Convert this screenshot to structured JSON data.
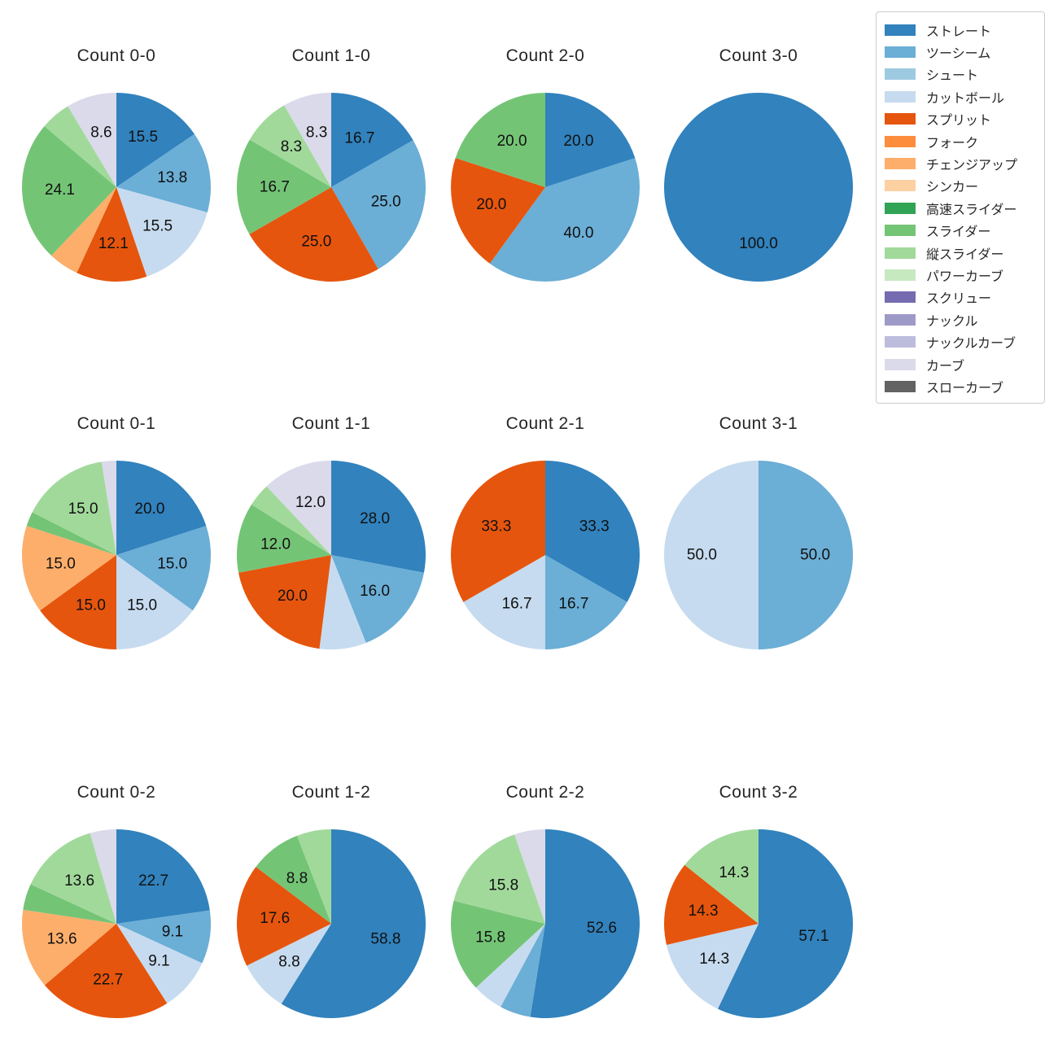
{
  "figure_title": "",
  "legend": {
    "items": [
      {
        "label": "ストレート",
        "color": "#3182bd"
      },
      {
        "label": "ツーシーム",
        "color": "#6baed6"
      },
      {
        "label": "シュート",
        "color": "#9ecae1"
      },
      {
        "label": "カットボール",
        "color": "#c6dbef"
      },
      {
        "label": "スプリット",
        "color": "#e6550d"
      },
      {
        "label": "フォーク",
        "color": "#fd8d3c"
      },
      {
        "label": "チェンジアップ",
        "color": "#fdae6b"
      },
      {
        "label": "シンカー",
        "color": "#fdd0a2"
      },
      {
        "label": "高速スライダー",
        "color": "#31a354"
      },
      {
        "label": "スライダー",
        "color": "#74c476"
      },
      {
        "label": "縦スライダー",
        "color": "#a1d99b"
      },
      {
        "label": "パワーカーブ",
        "color": "#c7e9c0"
      },
      {
        "label": "スクリュー",
        "color": "#756bb1"
      },
      {
        "label": "ナックル",
        "color": "#9e9ac8"
      },
      {
        "label": "ナックルカーブ",
        "color": "#bcbddc"
      },
      {
        "label": "カーブ",
        "color": "#dadaeb"
      },
      {
        "label": "スローカーブ",
        "color": "#636363"
      }
    ]
  },
  "chart_data": [
    {
      "type": "pie",
      "title": "Count 0-0",
      "start_angle_deg": 90,
      "direction": "clockwise",
      "labels": [
        "ストレート",
        "ツーシーム",
        "カットボール",
        "スプリット",
        "チェンジアップ",
        "スライダー",
        "縦スライダー",
        "カーブ"
      ],
      "values": [
        15.5,
        13.8,
        15.5,
        12.1,
        5.2,
        24.1,
        5.2,
        8.6
      ],
      "pct_labels": [
        "15.5",
        "13.8",
        "15.5",
        "12.1",
        null,
        "24.1",
        null,
        "8.6"
      ]
    },
    {
      "type": "pie",
      "title": "Count 1-0",
      "start_angle_deg": 90,
      "direction": "clockwise",
      "labels": [
        "ストレート",
        "ツーシーム",
        "スプリット",
        "スライダー",
        "縦スライダー",
        "カーブ"
      ],
      "values": [
        16.7,
        25.0,
        25.0,
        16.7,
        8.3,
        8.3
      ],
      "pct_labels": [
        "16.7",
        "25.0",
        "25.0",
        "16.7",
        "8.3",
        "8.3"
      ]
    },
    {
      "type": "pie",
      "title": "Count 2-0",
      "start_angle_deg": 90,
      "direction": "clockwise",
      "labels": [
        "ストレート",
        "ツーシーム",
        "スプリット",
        "スライダー"
      ],
      "values": [
        20.0,
        40.0,
        20.0,
        20.0
      ],
      "pct_labels": [
        "20.0",
        "40.0",
        "20.0",
        "20.0"
      ]
    },
    {
      "type": "pie",
      "title": "Count 3-0",
      "start_angle_deg": 90,
      "direction": "clockwise",
      "labels": [
        "ストレート"
      ],
      "values": [
        100.0
      ],
      "pct_labels": [
        "100.0"
      ]
    },
    {
      "type": "pie",
      "title": "Count 0-1",
      "start_angle_deg": 90,
      "direction": "clockwise",
      "labels": [
        "ストレート",
        "ツーシーム",
        "カットボール",
        "スプリット",
        "チェンジアップ",
        "スライダー",
        "縦スライダー",
        "カーブ"
      ],
      "values": [
        20.0,
        15.0,
        15.0,
        15.0,
        15.0,
        2.5,
        15.0,
        2.5
      ],
      "pct_labels": [
        "20.0",
        "15.0",
        "15.0",
        "15.0",
        "15.0",
        null,
        "15.0",
        null
      ]
    },
    {
      "type": "pie",
      "title": "Count 1-1",
      "start_angle_deg": 90,
      "direction": "clockwise",
      "labels": [
        "ストレート",
        "ツーシーム",
        "カットボール",
        "スプリット",
        "スライダー",
        "縦スライダー",
        "カーブ"
      ],
      "values": [
        28.0,
        16.0,
        8.0,
        20.0,
        12.0,
        4.0,
        12.0
      ],
      "pct_labels": [
        "28.0",
        "16.0",
        null,
        "20.0",
        "12.0",
        null,
        "12.0"
      ]
    },
    {
      "type": "pie",
      "title": "Count 2-1",
      "start_angle_deg": 90,
      "direction": "clockwise",
      "labels": [
        "ストレート",
        "ツーシーム",
        "カットボール",
        "スプリット"
      ],
      "values": [
        33.3,
        16.7,
        16.7,
        33.3
      ],
      "pct_labels": [
        "33.3",
        "16.7",
        "16.7",
        "33.3"
      ]
    },
    {
      "type": "pie",
      "title": "Count 3-1",
      "start_angle_deg": 90,
      "direction": "clockwise",
      "labels": [
        "ツーシーム",
        "カットボール"
      ],
      "values": [
        50.0,
        50.0
      ],
      "pct_labels": [
        "50.0",
        "50.0"
      ]
    },
    {
      "type": "pie",
      "title": "Count 0-2",
      "start_angle_deg": 90,
      "direction": "clockwise",
      "labels": [
        "ストレート",
        "ツーシーム",
        "カットボール",
        "スプリット",
        "チェンジアップ",
        "スライダー",
        "縦スライダー",
        "カーブ"
      ],
      "values": [
        22.7,
        9.1,
        9.1,
        22.7,
        13.6,
        4.5,
        13.6,
        4.5
      ],
      "pct_labels": [
        "22.7",
        "9.1",
        "9.1",
        "22.7",
        "13.6",
        null,
        "13.6",
        null
      ]
    },
    {
      "type": "pie",
      "title": "Count 1-2",
      "start_angle_deg": 90,
      "direction": "clockwise",
      "labels": [
        "ストレート",
        "カットボール",
        "スプリット",
        "スライダー",
        "縦スライダー"
      ],
      "values": [
        58.8,
        8.8,
        17.6,
        8.8,
        5.9
      ],
      "pct_labels": [
        "58.8",
        "8.8",
        "17.6",
        "8.8",
        null
      ]
    },
    {
      "type": "pie",
      "title": "Count 2-2",
      "start_angle_deg": 90,
      "direction": "clockwise",
      "labels": [
        "ストレート",
        "ツーシーム",
        "カットボール",
        "スライダー",
        "縦スライダー",
        "カーブ"
      ],
      "values": [
        52.6,
        5.3,
        5.3,
        15.8,
        15.8,
        5.3
      ],
      "pct_labels": [
        "52.6",
        null,
        null,
        "15.8",
        "15.8",
        null
      ]
    },
    {
      "type": "pie",
      "title": "Count 3-2",
      "start_angle_deg": 90,
      "direction": "clockwise",
      "labels": [
        "ストレート",
        "カットボール",
        "スプリット",
        "縦スライダー"
      ],
      "values": [
        57.1,
        14.3,
        14.3,
        14.3
      ],
      "pct_labels": [
        "57.1",
        "14.3",
        "14.3",
        "14.3"
      ]
    }
  ]
}
